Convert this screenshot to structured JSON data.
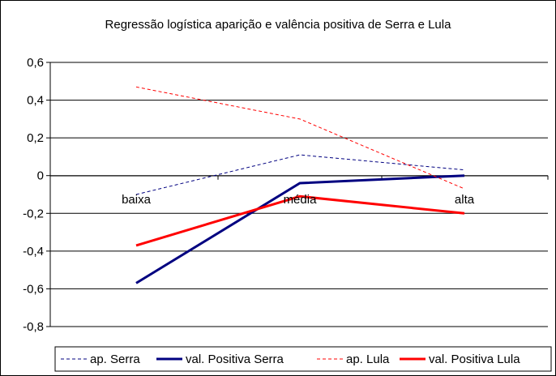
{
  "chart_data": {
    "type": "line",
    "title": "Regressão logística aparição e valência positiva de Serra e Lula",
    "categories": [
      "baixa",
      "média",
      "alta"
    ],
    "ylim": [
      -0.8,
      0.6
    ],
    "yticks": [
      "0,6",
      "0,4",
      "0,2",
      "0",
      "-0,2",
      "-0,4",
      "-0,6",
      "-0,8"
    ],
    "ytick_values": [
      0.6,
      0.4,
      0.2,
      0,
      -0.2,
      -0.4,
      -0.6,
      -0.8
    ],
    "grid": true,
    "legend_position": "bottom",
    "series": [
      {
        "name": "ap. Serra",
        "values": [
          -0.1,
          0.11,
          0.03
        ],
        "color": "#000080",
        "style": "dashed",
        "weight": "thin"
      },
      {
        "name": "val. Positiva Serra",
        "values": [
          -0.57,
          -0.04,
          0.0
        ],
        "color": "#000080",
        "style": "solid",
        "weight": "thick"
      },
      {
        "name": "ap. Lula",
        "values": [
          0.47,
          0.3,
          -0.07
        ],
        "color": "#ff0000",
        "style": "dashed",
        "weight": "thin"
      },
      {
        "name": "val. Positiva Lula",
        "values": [
          -0.37,
          -0.11,
          -0.2
        ],
        "color": "#ff0000",
        "style": "solid",
        "weight": "thick"
      }
    ]
  }
}
